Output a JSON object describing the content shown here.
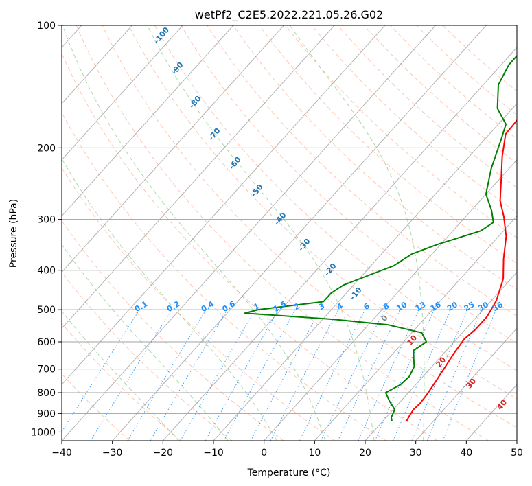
{
  "chart_data": {
    "type": "line",
    "subtype": "skew-T log-P diagram",
    "title": "wetPf2_C2E5.2022.221.05.26.G02",
    "xlabel": "Temperature (°C)",
    "ylabel": "Pressure (hPa)",
    "xlim": [
      -40,
      50
    ],
    "ylim": [
      1050,
      100
    ],
    "y_scale": "log",
    "x_ticks": [
      "−40",
      "−30",
      "−20",
      "−10",
      "0",
      "10",
      "20",
      "30",
      "40",
      "50"
    ],
    "y_ticks": [
      "100",
      "200",
      "300",
      "400",
      "500",
      "600",
      "700",
      "800",
      "900",
      "1000"
    ],
    "grid": true,
    "series": [
      {
        "role": "temperature",
        "color": "#ff0000",
        "points": [
          [
            24.7,
            940
          ],
          [
            24.3,
            910
          ],
          [
            24.0,
            880
          ],
          [
            24.2,
            850
          ],
          [
            24.0,
            810
          ],
          [
            23.5,
            760
          ],
          [
            22.8,
            700
          ],
          [
            22.0,
            640
          ],
          [
            21.5,
            590
          ],
          [
            22.0,
            560
          ],
          [
            22.0,
            520
          ],
          [
            21.0,
            475
          ],
          [
            18.5,
            420
          ],
          [
            15.0,
            375
          ],
          [
            11.5,
            330
          ],
          [
            7.5,
            295
          ],
          [
            4.0,
            270
          ],
          [
            0.5,
            240
          ],
          [
            -3.5,
            210
          ],
          [
            -6.8,
            185
          ],
          [
            -7.2,
            160
          ],
          [
            -8.5,
            140
          ],
          [
            -11.0,
            128
          ],
          [
            -12.5,
            118
          ],
          [
            -13.3,
            108
          ],
          [
            -13.6,
            100
          ]
        ]
      },
      {
        "role": "dewpoint",
        "color": "#008000",
        "points": [
          [
            21.8,
            940
          ],
          [
            21.0,
            920
          ],
          [
            20.3,
            880
          ],
          [
            17.8,
            840
          ],
          [
            15.5,
            800
          ],
          [
            17.0,
            765
          ],
          [
            17.3,
            730
          ],
          [
            16.5,
            690
          ],
          [
            15.0,
            660
          ],
          [
            13.5,
            630
          ],
          [
            14.5,
            600
          ],
          [
            12.0,
            570
          ],
          [
            4.0,
            545
          ],
          [
            -8.0,
            528
          ],
          [
            -26.5,
            510
          ],
          [
            -24.5,
            500
          ],
          [
            -13.0,
            478
          ],
          [
            -13.0,
            455
          ],
          [
            -12.0,
            435
          ],
          [
            -8.5,
            410
          ],
          [
            -5.5,
            390
          ],
          [
            -4.0,
            365
          ],
          [
            -0.5,
            345
          ],
          [
            5.5,
            320
          ],
          [
            6.5,
            305
          ],
          [
            4.0,
            285
          ],
          [
            0.0,
            260
          ],
          [
            -3.5,
            225
          ],
          [
            -6.8,
            190
          ],
          [
            -8.5,
            175
          ],
          [
            -13.0,
            160
          ],
          [
            -17.0,
            140
          ],
          [
            -18.5,
            125
          ],
          [
            -18.5,
            115
          ],
          [
            -16.5,
            105
          ],
          [
            -15.5,
            100
          ]
        ]
      }
    ],
    "background_lines": {
      "isotherm_interval": 10,
      "dry_adiabat_color": "#ff7f50",
      "moist_adiabat_color": "#2ca02c",
      "mixing_ratio_color": "#1e90ff",
      "isotherm_color": "#808080",
      "dry_adiabat_thetas": [
        -30,
        -20,
        -10,
        0,
        10,
        20,
        30,
        40,
        50,
        60,
        70,
        80,
        90,
        100,
        110,
        120,
        130,
        140,
        150,
        160,
        170,
        180
      ],
      "moist_adiabat_temps": [
        -20,
        -10,
        0,
        10,
        20,
        30
      ]
    },
    "annotations": {
      "upper_labels": [
        "-100",
        "-90",
        "-80",
        "-70",
        "-60",
        "-50",
        "-40",
        "-30",
        "-20",
        "-10"
      ],
      "mixing_ratio_labels": [
        "0.1",
        "0.2",
        "0.4",
        "0.6",
        "1",
        "1.5",
        "2",
        "3",
        "4",
        "6",
        "8",
        "10",
        "13",
        "16",
        "20",
        "25",
        "30",
        "36"
      ],
      "lower_labels": [
        "0",
        "10",
        "20",
        "30",
        "40"
      ]
    }
  }
}
